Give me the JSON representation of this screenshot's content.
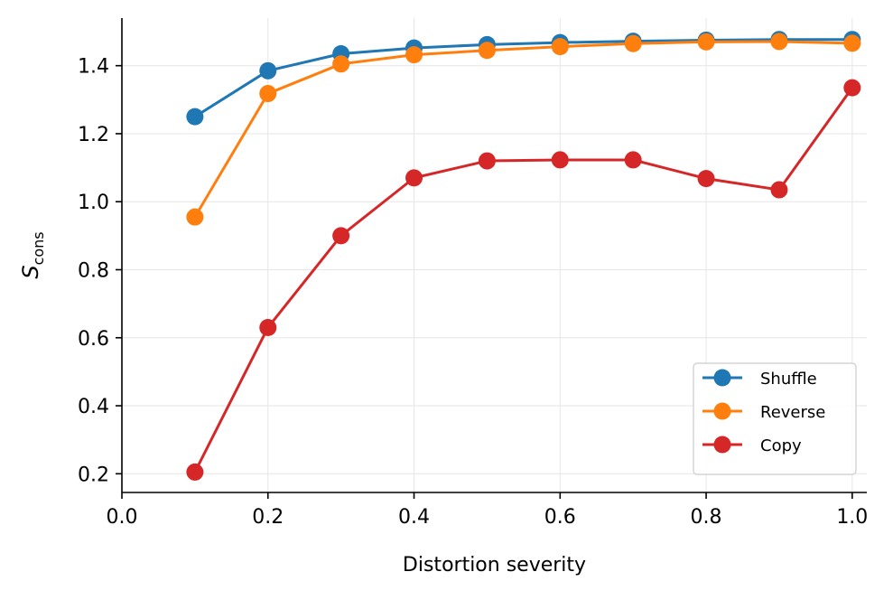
{
  "chart_data": {
    "type": "line",
    "title": "",
    "xlabel": "Distortion severity",
    "ylabel": {
      "main": "S",
      "sub": "cons"
    },
    "xlim": [
      0.0,
      1.02
    ],
    "ylim": [
      0.145,
      1.54
    ],
    "x_ticks": [
      {
        "value": 0.0,
        "label": "0.0"
      },
      {
        "value": 0.2,
        "label": "0.2"
      },
      {
        "value": 0.4,
        "label": "0.4"
      },
      {
        "value": 0.6,
        "label": "0.6"
      },
      {
        "value": 0.8,
        "label": "0.8"
      },
      {
        "value": 1.0,
        "label": "1.0"
      }
    ],
    "y_ticks": [
      {
        "value": 0.2,
        "label": "0.2"
      },
      {
        "value": 0.4,
        "label": "0.4"
      },
      {
        "value": 0.6,
        "label": "0.6"
      },
      {
        "value": 0.8,
        "label": "0.8"
      },
      {
        "value": 1.0,
        "label": "1.0"
      },
      {
        "value": 1.2,
        "label": "1.2"
      },
      {
        "value": 1.4,
        "label": "1.4"
      }
    ],
    "grid": true,
    "legend_position": "bottom-right",
    "x": [
      0.1,
      0.2,
      0.3,
      0.4,
      0.5,
      0.6,
      0.7,
      0.8,
      0.9,
      1.0
    ],
    "series": [
      {
        "name": "Shuffle",
        "color": "#1f77b4",
        "values": [
          1.25,
          1.385,
          1.435,
          1.452,
          1.462,
          1.468,
          1.472,
          1.475,
          1.477,
          1.477
        ]
      },
      {
        "name": "Reverse",
        "color": "#ff7f0e",
        "values": [
          0.955,
          1.318,
          1.405,
          1.432,
          1.445,
          1.456,
          1.465,
          1.47,
          1.471,
          1.466
        ]
      },
      {
        "name": "Copy",
        "color": "#d62728",
        "values": [
          0.205,
          0.63,
          0.9,
          1.07,
          1.12,
          1.123,
          1.123,
          1.068,
          1.035,
          1.335
        ]
      }
    ]
  }
}
